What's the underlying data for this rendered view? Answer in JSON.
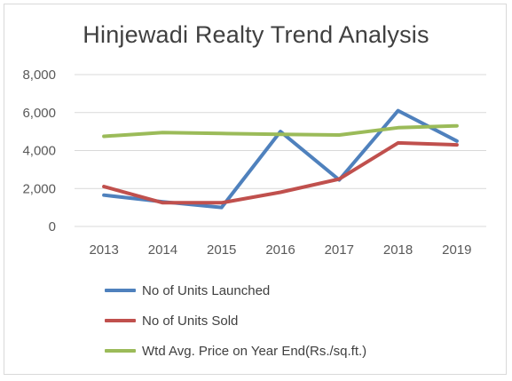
{
  "chart_data": {
    "type": "line",
    "title": "Hinjewadi Realty Trend Analysis",
    "xlabel": "",
    "ylabel": "",
    "categories": [
      "2013",
      "2014",
      "2015",
      "2016",
      "2017",
      "2018",
      "2019"
    ],
    "ylim": [
      0,
      8000
    ],
    "yticks": [
      0,
      2000,
      4000,
      6000,
      8000
    ],
    "ytick_labels": [
      "0",
      "2,000",
      "4,000",
      "6,000",
      "8,000"
    ],
    "grid": true,
    "legend_position": "bottom",
    "series": [
      {
        "name": "No of Units Launched",
        "color": "#4f81bd",
        "values": [
          1650,
          1300,
          1000,
          5000,
          2450,
          6100,
          4500
        ]
      },
      {
        "name": "No of Units Sold",
        "color": "#c0504d",
        "values": [
          2100,
          1250,
          1250,
          1800,
          2500,
          4400,
          4300
        ]
      },
      {
        "name": "Wtd Avg. Price on Year End(Rs./sq.ft.)",
        "color": "#9bbb59",
        "values": [
          4750,
          4950,
          4900,
          4850,
          4820,
          5200,
          5300
        ]
      }
    ]
  }
}
